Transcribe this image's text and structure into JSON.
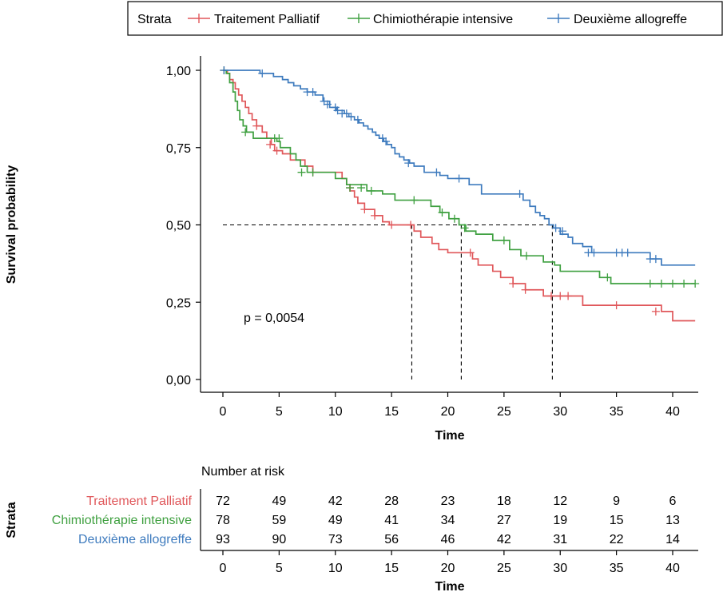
{
  "chart_data": {
    "type": "line",
    "subtype": "kaplan-meier",
    "legend": {
      "title": "Strata",
      "position": "top",
      "items": [
        "Traitement Palliatif",
        "Chimiothérapie intensive",
        "Deuxième allogreffe"
      ]
    },
    "xlabel": "Time",
    "ylabel": "Survival probability",
    "xlim": [
      -2,
      42
    ],
    "ylim": [
      0,
      1
    ],
    "x_ticks": [
      0,
      5,
      10,
      15,
      20,
      25,
      30,
      35,
      40
    ],
    "y_ticks": [
      {
        "value": 0,
        "label": "0,00"
      },
      {
        "value": 0.25,
        "label": "0,25"
      },
      {
        "value": 0.5,
        "label": "0,50"
      },
      {
        "value": 0.75,
        "label": "0,75"
      },
      {
        "value": 1,
        "label": "1,00"
      }
    ],
    "pvalue_label": "p = 0,0054",
    "median_line": {
      "y": 0.5,
      "medians": [
        {
          "series": "Traitement Palliatif",
          "x": 16.8
        },
        {
          "series": "Chimiothérapie intensive",
          "x": 21.2
        },
        {
          "series": "Deuxième allogreffe",
          "x": 29.3
        }
      ]
    },
    "series": [
      {
        "name": "Traitement Palliatif",
        "color": "#e0575a",
        "steps": [
          [
            0,
            1.0
          ],
          [
            0.4,
            0.99
          ],
          [
            0.6,
            0.97
          ],
          [
            0.9,
            0.96
          ],
          [
            1.1,
            0.94
          ],
          [
            1.4,
            0.92
          ],
          [
            1.7,
            0.9
          ],
          [
            2.0,
            0.88
          ],
          [
            2.3,
            0.86
          ],
          [
            2.6,
            0.84
          ],
          [
            3.0,
            0.82
          ],
          [
            3.5,
            0.8
          ],
          [
            3.9,
            0.78
          ],
          [
            4.3,
            0.76
          ],
          [
            4.6,
            0.74
          ],
          [
            5.3,
            0.73
          ],
          [
            6.0,
            0.71
          ],
          [
            7.3,
            0.69
          ],
          [
            8.0,
            0.67
          ],
          [
            10.6,
            0.65
          ],
          [
            11.0,
            0.63
          ],
          [
            11.3,
            0.61
          ],
          [
            11.7,
            0.59
          ],
          [
            12.0,
            0.57
          ],
          [
            12.6,
            0.55
          ],
          [
            13.5,
            0.53
          ],
          [
            14.2,
            0.51
          ],
          [
            14.8,
            0.5
          ],
          [
            17.0,
            0.48
          ],
          [
            17.6,
            0.46
          ],
          [
            18.6,
            0.44
          ],
          [
            19.2,
            0.42
          ],
          [
            20.0,
            0.41
          ],
          [
            22.2,
            0.39
          ],
          [
            22.7,
            0.37
          ],
          [
            24.0,
            0.35
          ],
          [
            24.7,
            0.33
          ],
          [
            25.8,
            0.31
          ],
          [
            26.9,
            0.29
          ],
          [
            28.5,
            0.27
          ],
          [
            32.0,
            0.24
          ],
          [
            39.0,
            0.22
          ],
          [
            40.0,
            0.19
          ],
          [
            42,
            0.19
          ]
        ],
        "censors": [
          [
            0.1,
            1.0
          ],
          [
            3.0,
            0.82
          ],
          [
            4.2,
            0.76
          ],
          [
            4.8,
            0.74
          ],
          [
            8.0,
            0.67
          ],
          [
            11.3,
            0.62
          ],
          [
            12.6,
            0.55
          ],
          [
            13.5,
            0.53
          ],
          [
            15.0,
            0.5
          ],
          [
            16.7,
            0.5
          ],
          [
            22.0,
            0.41
          ],
          [
            25.8,
            0.31
          ],
          [
            26.9,
            0.29
          ],
          [
            29.2,
            0.27
          ],
          [
            30.0,
            0.27
          ],
          [
            30.7,
            0.27
          ],
          [
            35.0,
            0.24
          ],
          [
            38.5,
            0.22
          ]
        ],
        "at_risk": [
          72,
          49,
          42,
          28,
          23,
          18,
          12,
          9,
          6
        ]
      },
      {
        "name": "Chimiothérapie intensive",
        "color": "#3fa040",
        "steps": [
          [
            0,
            1.0
          ],
          [
            0.3,
            0.99
          ],
          [
            0.6,
            0.96
          ],
          [
            0.9,
            0.93
          ],
          [
            1.1,
            0.9
          ],
          [
            1.3,
            0.87
          ],
          [
            1.5,
            0.84
          ],
          [
            1.8,
            0.82
          ],
          [
            2.1,
            0.8
          ],
          [
            2.7,
            0.78
          ],
          [
            4.8,
            0.77
          ],
          [
            5.1,
            0.75
          ],
          [
            6.0,
            0.73
          ],
          [
            6.5,
            0.71
          ],
          [
            6.9,
            0.69
          ],
          [
            7.5,
            0.67
          ],
          [
            10.0,
            0.65
          ],
          [
            11.0,
            0.63
          ],
          [
            12.8,
            0.61
          ],
          [
            14.2,
            0.6
          ],
          [
            15.3,
            0.58
          ],
          [
            18.5,
            0.56
          ],
          [
            19.3,
            0.54
          ],
          [
            20.1,
            0.52
          ],
          [
            21.0,
            0.5
          ],
          [
            21.6,
            0.48
          ],
          [
            22.5,
            0.47
          ],
          [
            24.0,
            0.45
          ],
          [
            25.5,
            0.42
          ],
          [
            26.5,
            0.4
          ],
          [
            28.5,
            0.38
          ],
          [
            29.5,
            0.37
          ],
          [
            30.0,
            0.35
          ],
          [
            33.5,
            0.33
          ],
          [
            34.5,
            0.31
          ],
          [
            42,
            0.31
          ]
        ],
        "censors": [
          [
            0.1,
            1.0
          ],
          [
            2.0,
            0.8
          ],
          [
            4.6,
            0.78
          ],
          [
            5.0,
            0.78
          ],
          [
            7.0,
            0.67
          ],
          [
            8.0,
            0.67
          ],
          [
            11.3,
            0.62
          ],
          [
            12.3,
            0.62
          ],
          [
            13.2,
            0.61
          ],
          [
            17.0,
            0.58
          ],
          [
            19.5,
            0.54
          ],
          [
            20.6,
            0.52
          ],
          [
            21.5,
            0.49
          ],
          [
            25.0,
            0.45
          ],
          [
            27.0,
            0.4
          ],
          [
            34.2,
            0.33
          ],
          [
            38.0,
            0.31
          ],
          [
            39.0,
            0.31
          ],
          [
            40.0,
            0.31
          ],
          [
            41.0,
            0.31
          ],
          [
            42.0,
            0.31
          ]
        ],
        "at_risk": [
          78,
          59,
          49,
          41,
          34,
          27,
          19,
          15,
          13
        ]
      },
      {
        "name": "Deuxième allogreffe",
        "color": "#3e7bbe",
        "steps": [
          [
            0,
            1.0
          ],
          [
            3.3,
            0.99
          ],
          [
            4.5,
            0.98
          ],
          [
            5.3,
            0.97
          ],
          [
            5.8,
            0.96
          ],
          [
            6.3,
            0.95
          ],
          [
            6.9,
            0.94
          ],
          [
            7.5,
            0.93
          ],
          [
            8.2,
            0.92
          ],
          [
            8.9,
            0.9
          ],
          [
            9.5,
            0.88
          ],
          [
            10.1,
            0.87
          ],
          [
            10.8,
            0.86
          ],
          [
            11.2,
            0.85
          ],
          [
            11.7,
            0.84
          ],
          [
            12.1,
            0.83
          ],
          [
            12.5,
            0.82
          ],
          [
            12.9,
            0.81
          ],
          [
            13.3,
            0.8
          ],
          [
            13.6,
            0.79
          ],
          [
            13.9,
            0.78
          ],
          [
            14.3,
            0.77
          ],
          [
            14.6,
            0.76
          ],
          [
            15.0,
            0.75
          ],
          [
            15.3,
            0.73
          ],
          [
            15.7,
            0.72
          ],
          [
            16.1,
            0.71
          ],
          [
            16.6,
            0.7
          ],
          [
            17.0,
            0.69
          ],
          [
            17.9,
            0.67
          ],
          [
            19.3,
            0.66
          ],
          [
            20.0,
            0.65
          ],
          [
            21.9,
            0.63
          ],
          [
            23.0,
            0.6
          ],
          [
            26.7,
            0.58
          ],
          [
            27.3,
            0.56
          ],
          [
            27.8,
            0.54
          ],
          [
            28.2,
            0.53
          ],
          [
            28.6,
            0.52
          ],
          [
            29.0,
            0.5
          ],
          [
            29.4,
            0.49
          ],
          [
            30.0,
            0.47
          ],
          [
            30.7,
            0.46
          ],
          [
            31.1,
            0.44
          ],
          [
            32.0,
            0.43
          ],
          [
            32.8,
            0.41
          ],
          [
            38.0,
            0.39
          ],
          [
            39.0,
            0.37
          ],
          [
            42,
            0.37
          ]
        ],
        "censors": [
          [
            0.1,
            1.0
          ],
          [
            3.5,
            0.99
          ],
          [
            7.5,
            0.93
          ],
          [
            8.0,
            0.93
          ],
          [
            9.0,
            0.9
          ],
          [
            9.3,
            0.89
          ],
          [
            10.0,
            0.88
          ],
          [
            10.2,
            0.87
          ],
          [
            10.6,
            0.86
          ],
          [
            11.0,
            0.86
          ],
          [
            11.4,
            0.85
          ],
          [
            12.0,
            0.84
          ],
          [
            14.2,
            0.78
          ],
          [
            14.5,
            0.77
          ],
          [
            16.5,
            0.7
          ],
          [
            19.0,
            0.67
          ],
          [
            21.0,
            0.65
          ],
          [
            26.4,
            0.6
          ],
          [
            29.6,
            0.49
          ],
          [
            30.2,
            0.48
          ],
          [
            32.5,
            0.41
          ],
          [
            33.0,
            0.41
          ],
          [
            35.0,
            0.41
          ],
          [
            35.5,
            0.41
          ],
          [
            36.0,
            0.41
          ],
          [
            38.0,
            0.39
          ],
          [
            38.5,
            0.39
          ]
        ],
        "at_risk": [
          93,
          90,
          73,
          56,
          46,
          42,
          31,
          22,
          14
        ]
      }
    ],
    "risk_table": {
      "title": "Number at risk",
      "ylabel": "Strata",
      "xlabel": "Time",
      "times": [
        0,
        5,
        10,
        15,
        20,
        25,
        30,
        35,
        40
      ]
    }
  }
}
